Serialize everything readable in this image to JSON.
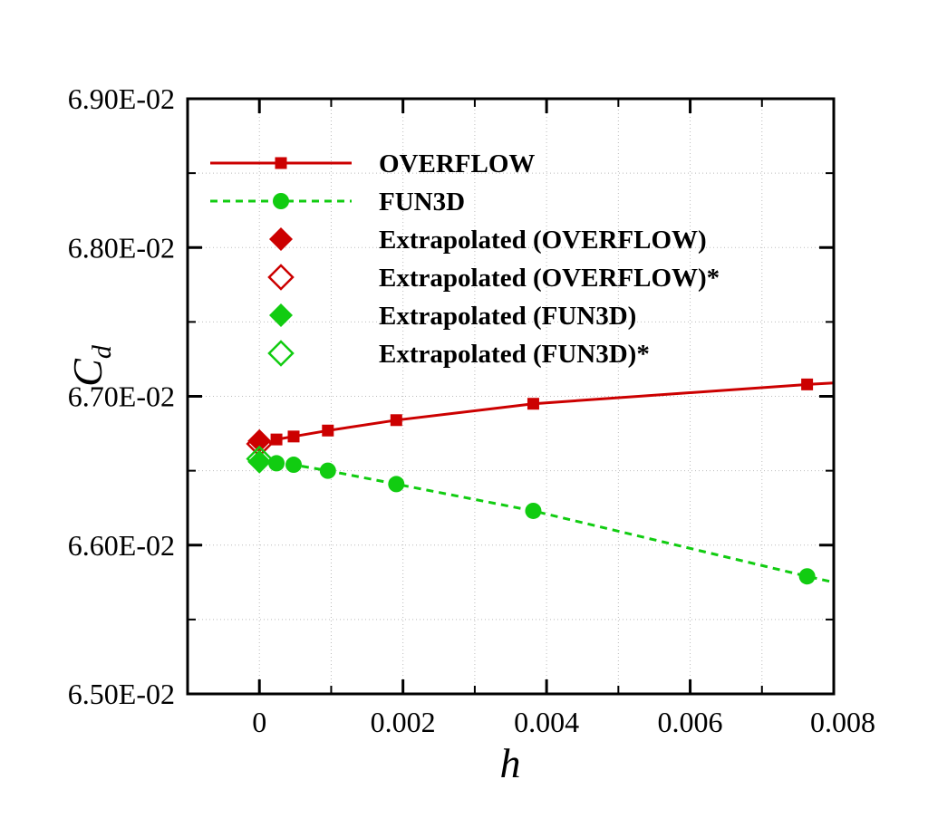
{
  "chart_data": {
    "type": "line",
    "xlabel": "h",
    "ylabel": "C",
    "ylabel_sub": "d",
    "xlim": [
      -0.001,
      0.008
    ],
    "ylim": [
      0.065,
      0.069
    ],
    "x_ticks": [
      0,
      0.002,
      0.004,
      0.006,
      0.008
    ],
    "x_tick_labels": [
      "0",
      "0.002",
      "0.004",
      "0.006",
      "0.008"
    ],
    "y_ticks": [
      0.065,
      0.066,
      0.067,
      0.068,
      0.069
    ],
    "y_tick_labels": [
      "6.50E-02",
      "6.60E-02",
      "6.70E-02",
      "6.80E-02",
      "6.90E-02"
    ],
    "grid": true,
    "legend_position": "top-right",
    "series": [
      {
        "name": "OVERFLOW",
        "color": "#cc0000",
        "marker": "square",
        "line": "solid",
        "x": [
          0.000238,
          0.000477,
          0.000954,
          0.001907,
          0.003815,
          0.007629,
          0.008
        ],
        "y": [
          0.06671,
          0.06673,
          0.06677,
          0.06684,
          0.06695,
          0.06708,
          0.06709
        ],
        "marked": [
          true,
          true,
          true,
          true,
          true,
          true,
          false
        ]
      },
      {
        "name": "FUN3D",
        "color": "#11cc11",
        "marker": "circle",
        "line": "dashed",
        "x": [
          0.000238,
          0.000477,
          0.000954,
          0.001907,
          0.003815,
          0.007629,
          0.008
        ],
        "y": [
          0.06655,
          0.06654,
          0.0665,
          0.06641,
          0.06623,
          0.06579,
          0.06575
        ],
        "marked": [
          true,
          true,
          true,
          true,
          true,
          true,
          false
        ]
      },
      {
        "name": "Extrapolated (OVERFLOW)",
        "color": "#cc0000",
        "marker": "diamond-filled",
        "line": "none",
        "x": [
          0.0
        ],
        "y": [
          0.0667
        ]
      },
      {
        "name": "Extrapolated (OVERFLOW)*",
        "color": "#cc0000",
        "marker": "diamond-open",
        "line": "none",
        "x": [
          0.0
        ],
        "y": [
          0.06668
        ]
      },
      {
        "name": "Extrapolated (FUN3D)",
        "color": "#11cc11",
        "marker": "diamond-filled",
        "line": "none",
        "x": [
          0.0
        ],
        "y": [
          0.06656
        ]
      },
      {
        "name": "Extrapolated (FUN3D)*",
        "color": "#11cc11",
        "marker": "diamond-open",
        "line": "none",
        "x": [
          0.0
        ],
        "y": [
          0.06658
        ]
      }
    ]
  }
}
